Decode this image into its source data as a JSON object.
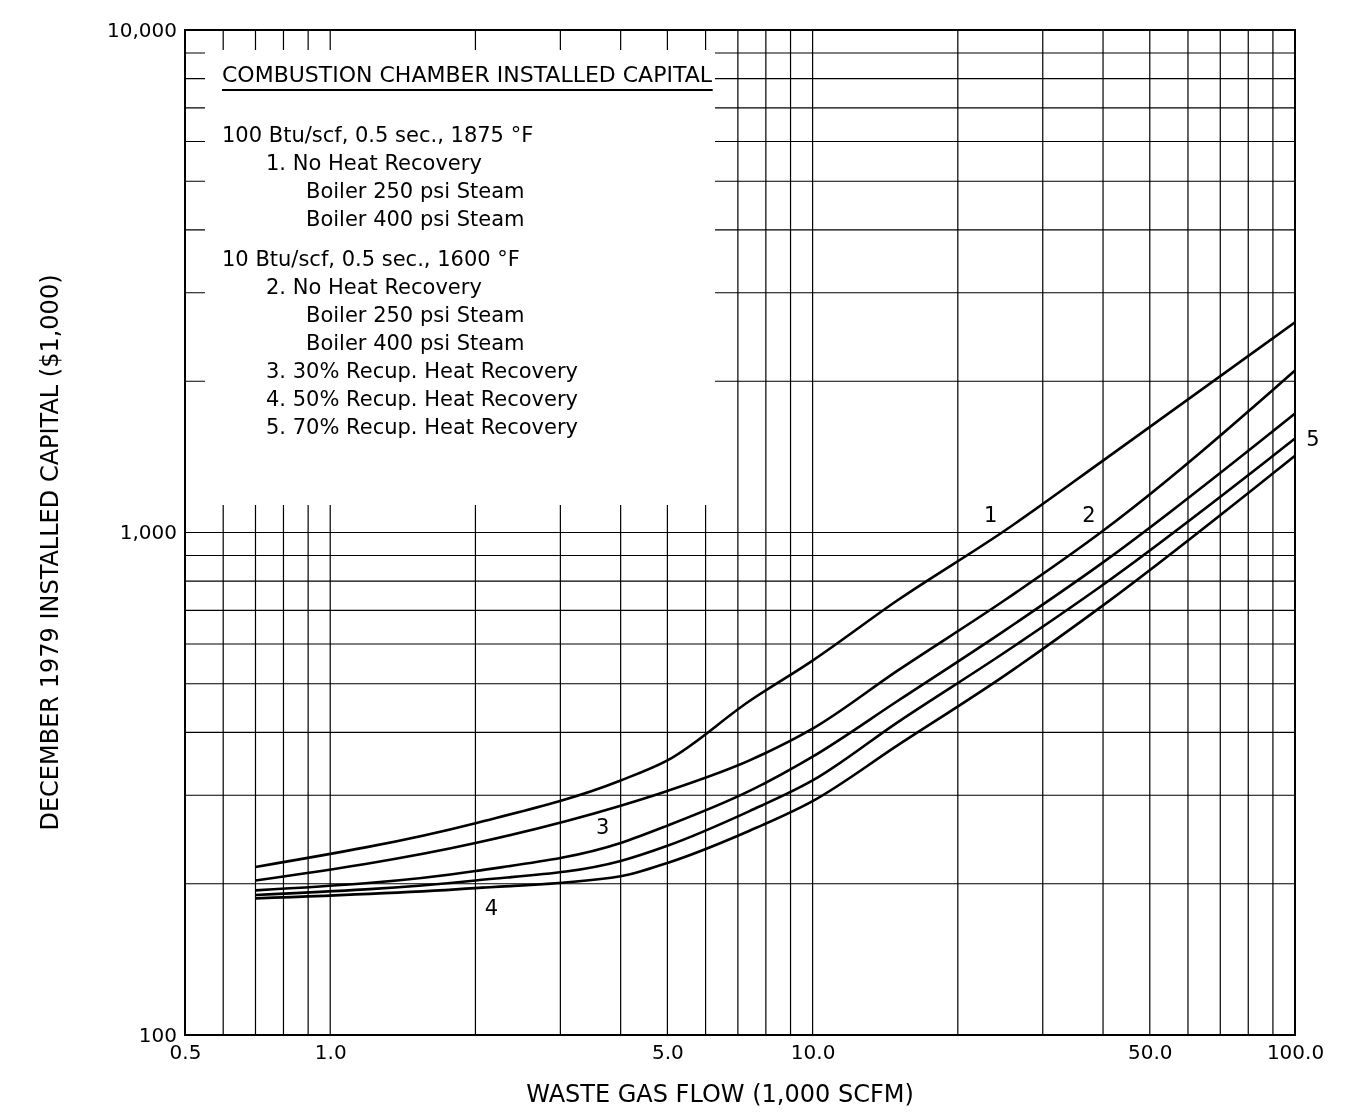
{
  "chart_data": {
    "type": "line",
    "title": "COMBUSTION CHAMBER INSTALLED CAPITAL",
    "xlabel": "WASTE  GAS  FLOW  (1,000 SCFM)",
    "ylabel": "DECEMBER 1979 INSTALLED CAPITAL ($1,000)",
    "x": [
      0.7,
      2,
      4,
      5,
      7.4,
      10,
      15,
      25,
      40,
      100
    ],
    "series": [
      {
        "name": "1",
        "color": "#000000",
        "values": [
          216,
          264,
          321,
          352,
          462,
          556,
          733,
          1008,
          1390,
          2620
        ]
      },
      {
        "name": "2",
        "color": "#000000",
        "values": [
          203,
          241,
          286,
          306,
          352,
          407,
          531,
          733,
          1008,
          2100
        ]
      },
      {
        "name": "3",
        "color": "#000000",
        "values": [
          194,
          212,
          241,
          261,
          306,
          358,
          462,
          638,
          872,
          1725
        ]
      },
      {
        "name": "5",
        "color": "#000000",
        "values": [
          190,
          203,
          222,
          238,
          279,
          321,
          419,
          577,
          787,
          1538
        ]
      },
      {
        "name": "4",
        "color": "#000000",
        "values": [
          187,
          196,
          207,
          220,
          255,
          292,
          377,
          519,
          716,
          1422
        ]
      }
    ],
    "log": "xy",
    "xlim": [
      0.5,
      100
    ],
    "ylim": [
      100,
      10000
    ],
    "xticks": [
      {
        "value": 0.5,
        "label": "0.5"
      },
      {
        "value": 0.6,
        "label": null
      },
      {
        "value": 0.7,
        "label": null
      },
      {
        "value": 0.8,
        "label": null
      },
      {
        "value": 0.9,
        "label": null
      },
      {
        "value": 1,
        "label": "1.0"
      },
      {
        "value": 2,
        "label": null
      },
      {
        "value": 3,
        "label": null
      },
      {
        "value": 4,
        "label": null
      },
      {
        "value": 5,
        "label": "5.0"
      },
      {
        "value": 6,
        "label": null
      },
      {
        "value": 7,
        "label": null
      },
      {
        "value": 8,
        "label": null
      },
      {
        "value": 9,
        "label": null
      },
      {
        "value": 10,
        "label": "10.0"
      },
      {
        "value": 20,
        "label": null
      },
      {
        "value": 30,
        "label": null
      },
      {
        "value": 40,
        "label": null
      },
      {
        "value": 50,
        "label": "50.0"
      },
      {
        "value": 60,
        "label": null
      },
      {
        "value": 70,
        "label": null
      },
      {
        "value": 80,
        "label": null
      },
      {
        "value": 90,
        "label": null
      },
      {
        "value": 100,
        "label": "100.0"
      }
    ],
    "yticks": [
      100,
      {
        "value": 200,
        "label": null
      },
      {
        "value": 300,
        "label": null
      },
      {
        "value": 400,
        "label": null
      },
      {
        "value": 500,
        "label": null
      },
      {
        "value": 600,
        "label": null
      },
      {
        "value": 700,
        "label": null
      },
      {
        "value": 800,
        "label": null
      },
      {
        "value": 900,
        "label": null
      },
      {
        "value": 1000,
        "label": "1,000"
      },
      {
        "value": 2000,
        "label": null
      },
      {
        "value": 3000,
        "label": null
      },
      {
        "value": 4000,
        "label": null
      },
      {
        "value": 5000,
        "label": null
      },
      {
        "value": 6000,
        "label": null
      },
      {
        "value": 7000,
        "label": null
      },
      {
        "value": 8000,
        "label": null
      },
      {
        "value": 9000,
        "label": null
      },
      {
        "value": 10000,
        "label": "10,000"
      }
    ],
    "grid": true,
    "marker": "none",
    "line_style": "solid",
    "annotations": [
      "100 Btu/scf, 0.5 sec., 1875 °F",
      "1.  No Heat Recovery",
      "Boiler  250 psi  Steam",
      "Boiler  400 psi  Steam",
      "10 Btu/scf, 0.5 sec., 1600 °F",
      "2.  No Heat Recovery",
      "Boiler  250 psi  Steam",
      "Boiler  400 psi  Steam",
      "3.  30% Recup. Heat Recovery",
      "4.  50% Recup. Heat Recovery",
      "5.  70% Recup. Heat Recovery"
    ]
  }
}
